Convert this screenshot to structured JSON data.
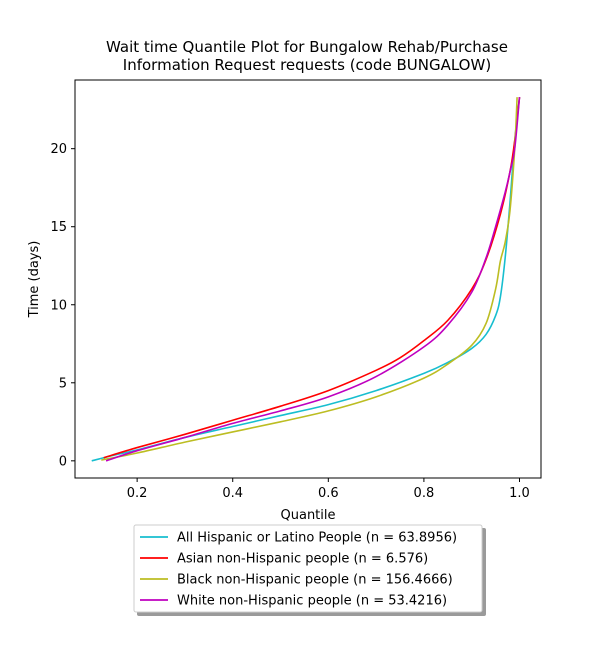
{
  "chart_data": {
    "type": "line",
    "title_line1": "Wait time Quantile Plot for Bungalow Rehab/Purchase",
    "title_line2": "Information Request  requests (code BUNGALOW)",
    "xlabel": "Quantile",
    "ylabel": "Time (days)",
    "xlim": [
      0.07,
      1.045
    ],
    "ylim": [
      -1.1,
      24.4
    ],
    "xticks": [
      0.2,
      0.4,
      0.6,
      0.8,
      1.0
    ],
    "xtick_labels": [
      "0.2",
      "0.4",
      "0.6",
      "0.8",
      "1.0"
    ],
    "yticks": [
      0,
      5,
      10,
      15,
      20
    ],
    "ytick_labels": [
      "0",
      "5",
      "10",
      "15",
      "20"
    ],
    "grid": false,
    "legend_position": "below",
    "series": [
      {
        "name": "All Hispanic or Latino People (n = 63.8956)",
        "color": "#17becf",
        "x": [
          0.105,
          0.15,
          0.2,
          0.3,
          0.4,
          0.5,
          0.6,
          0.7,
          0.8,
          0.85,
          0.9,
          0.93,
          0.95,
          0.96,
          0.97,
          0.98,
          0.99,
          1.0
        ],
        "y": [
          0.0,
          0.35,
          0.7,
          1.5,
          2.2,
          2.9,
          3.6,
          4.5,
          5.6,
          6.3,
          7.2,
          8.1,
          9.3,
          10.5,
          13.0,
          16.5,
          20.5,
          23.3
        ]
      },
      {
        "name": "Asian non-Hispanic people (n = 6.576)",
        "color": "#ff0000",
        "x": [
          0.13,
          0.2,
          0.3,
          0.4,
          0.5,
          0.6,
          0.7,
          0.75,
          0.8,
          0.85,
          0.9,
          0.93,
          0.96,
          0.98,
          0.99,
          1.0
        ],
        "y": [
          0.2,
          0.85,
          1.7,
          2.6,
          3.5,
          4.5,
          5.8,
          6.6,
          7.7,
          9.0,
          11.0,
          12.9,
          15.8,
          18.5,
          20.5,
          23.3
        ]
      },
      {
        "name": "Black non-Hispanic people (n = 156.4666)",
        "color": "#bcbd22",
        "x": [
          0.125,
          0.2,
          0.3,
          0.4,
          0.5,
          0.6,
          0.7,
          0.8,
          0.85,
          0.9,
          0.93,
          0.95,
          0.96,
          0.97,
          0.98,
          0.99,
          0.995
        ],
        "y": [
          0.05,
          0.5,
          1.2,
          1.85,
          2.5,
          3.2,
          4.1,
          5.3,
          6.2,
          7.4,
          8.8,
          11.0,
          12.8,
          14.0,
          16.0,
          20.0,
          23.3
        ]
      },
      {
        "name": "White non-Hispanic people (n = 53.4216)",
        "color": "#bf00bf",
        "x": [
          0.135,
          0.2,
          0.3,
          0.4,
          0.5,
          0.6,
          0.7,
          0.8,
          0.85,
          0.9,
          0.93,
          0.95,
          0.97,
          0.98,
          0.99,
          1.0
        ],
        "y": [
          0.0,
          0.65,
          1.5,
          2.4,
          3.2,
          4.1,
          5.4,
          7.3,
          8.7,
          10.8,
          13.0,
          15.0,
          17.2,
          18.5,
          20.0,
          23.3
        ]
      }
    ]
  }
}
